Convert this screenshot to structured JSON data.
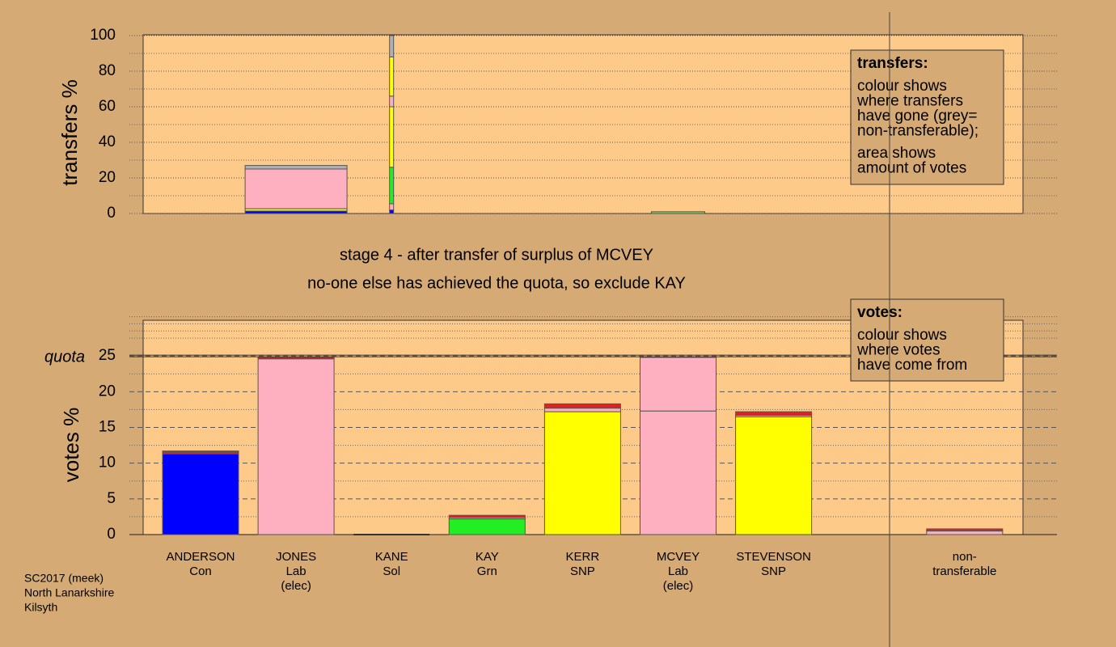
{
  "chart_data": [
    {
      "type": "stacked_bar",
      "y_label": "transfers %",
      "ylim": [
        0,
        100
      ],
      "yticks": [
        0,
        20,
        40,
        60,
        80,
        100
      ],
      "stacks": [
        [],
        [
          {
            "color": "#0000ff",
            "value": 1.4
          },
          {
            "color": "#ffff00",
            "value": 1.3
          },
          {
            "color": "#ffb0c0",
            "value": 22.3
          },
          {
            "color": "#b0b0b0",
            "value": 2
          }
        ],
        [
          {
            "color": "#0000ff",
            "value": 2
          },
          {
            "color": "#ffb0c0",
            "value": 3.5
          },
          {
            "color": "#22ee22",
            "value": 20.5
          },
          {
            "color": "#ffff00",
            "value": 34
          },
          {
            "color": "#ffb0c0",
            "value": 6
          },
          {
            "color": "#ffff00",
            "value": 22
          },
          {
            "color": "#b0b0b0",
            "value": 12
          }
        ],
        [],
        [],
        [
          {
            "color": "#88cc66",
            "value": 1
          }
        ],
        [],
        [],
        []
      ],
      "note": {
        "title": "transfers:",
        "lines": [
          "colour shows",
          "where transfers",
          "have gone (grey=",
          "non-transferable);",
          "area shows",
          "amount of votes"
        ]
      }
    },
    {
      "type": "stacked_bar",
      "y_label": "votes %",
      "ylim": [
        0,
        30
      ],
      "yticks": [
        0,
        5,
        10,
        15,
        20,
        25
      ],
      "quota": 25,
      "quota_label": "quota",
      "categories": [
        [
          "ANDERSON",
          "Con"
        ],
        [
          "JONES",
          "Lab",
          "(elec)"
        ],
        [
          "KANE",
          "Sol"
        ],
        [
          "KAY",
          "Grn"
        ],
        [
          "KERR",
          "SNP"
        ],
        [
          "MCVEY",
          "Lab",
          "(elec)"
        ],
        [
          "STEVENSON",
          "SNP"
        ],
        null,
        [
          "non-",
          "transferable"
        ]
      ],
      "stacks": [
        [
          {
            "color": "#0000ff",
            "value": 11.3
          },
          {
            "color": "#dd2222",
            "value": 0.3
          },
          {
            "color": "#ffb0c0",
            "value": 0.1
          }
        ],
        [
          {
            "color": "#ffb0c0",
            "value": 24.6
          },
          {
            "color": "#dd2222",
            "value": 0.2
          }
        ],
        [],
        [
          {
            "color": "#22ee22",
            "value": 2.2
          },
          {
            "color": "#ffb0c0",
            "value": 0.2
          },
          {
            "color": "#dd2222",
            "value": 0.3
          }
        ],
        [
          {
            "color": "#ffff00",
            "value": 17.2
          },
          {
            "color": "#ffb0c0",
            "value": 0.5
          },
          {
            "color": "#dd2222",
            "value": 0.6
          }
        ],
        [
          {
            "color": "#ffb0c0",
            "value": 17.3
          },
          {
            "color": "#ffb0c0",
            "value": 7.5
          }
        ],
        [
          {
            "color": "#ffff00",
            "value": 16.5
          },
          {
            "color": "#ffb0c0",
            "value": 0.2
          },
          {
            "color": "#dd2222",
            "value": 0.5
          }
        ],
        [],
        [
          {
            "color": "#ffb0c0",
            "value": 0.5
          },
          {
            "color": "#dd2222",
            "value": 0.3
          }
        ]
      ],
      "note": {
        "title": "votes:",
        "lines": [
          "colour shows",
          "where votes",
          "have come from"
        ]
      }
    }
  ],
  "stage": [
    "stage 4 - after transfer of surplus of MCVEY",
    "no-one else has achieved the quota, so exclude KAY"
  ],
  "footer": [
    "SC2017 (meek)",
    "North Lanarkshire",
    "Kilsyth"
  ]
}
